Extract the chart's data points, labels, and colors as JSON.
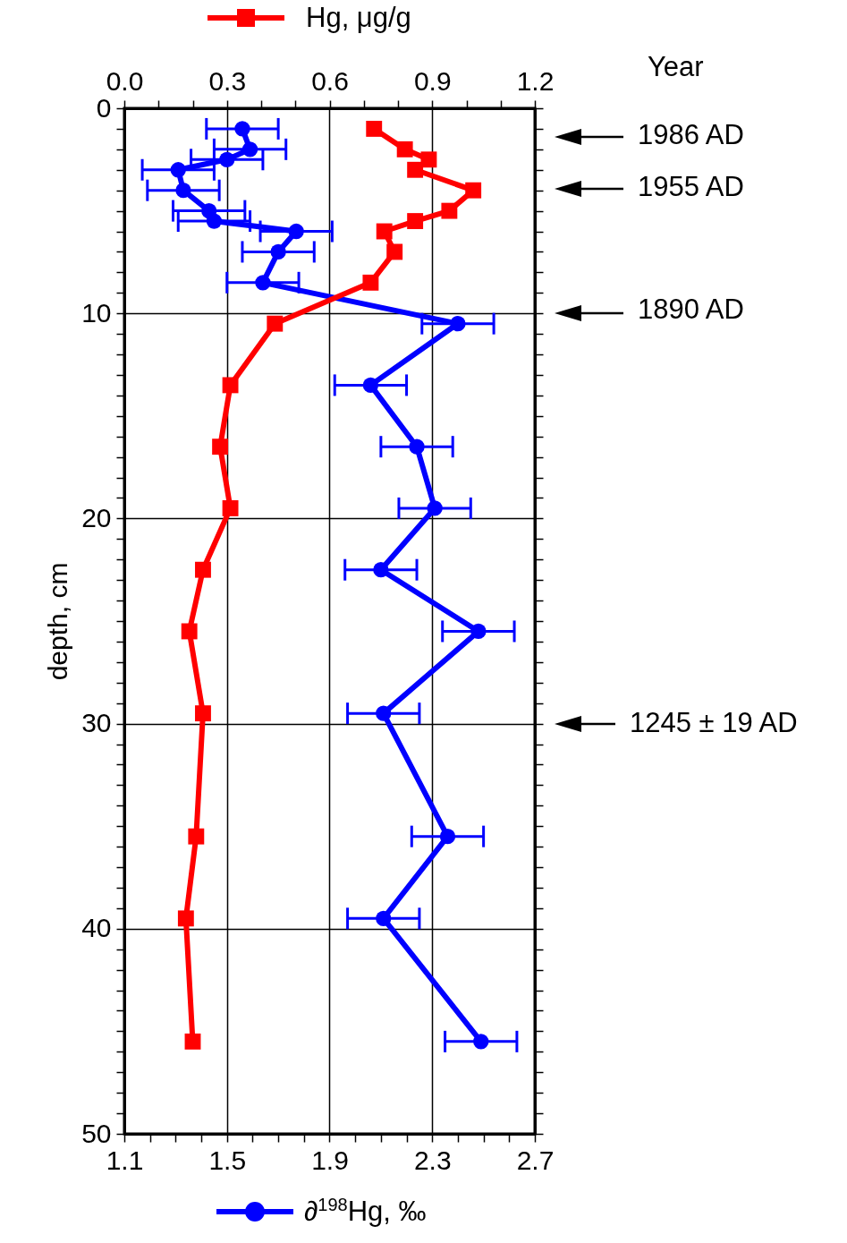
{
  "chart_data": {
    "type": "line",
    "orientation": "horizontal",
    "ylabel": "depth, cm",
    "grid": true,
    "legend": "top",
    "xlim": [
      1.1,
      2.7
    ],
    "xticks": [
      1.1,
      {
        "value": 1.2,
        "label": null
      },
      {
        "value": 1.3,
        "label": null
      },
      {
        "value": 1.4,
        "label": null
      },
      1.5,
      {
        "value": 1.6,
        "label": null
      },
      {
        "value": 1.7,
        "label": null
      },
      {
        "value": 1.8,
        "label": null
      },
      1.9,
      {
        "value": 2.0,
        "label": null
      },
      {
        "value": 2.1,
        "label": null
      },
      {
        "value": 2.2,
        "label": null
      },
      2.3,
      {
        "value": 2.4,
        "label": null
      },
      {
        "value": 2.5,
        "label": null
      },
      {
        "value": 2.6,
        "label": null
      },
      2.7
    ],
    "x2lim": [
      0,
      1.2
    ],
    "x2ticks": [
      {
        "value": 0,
        "label": "0.0"
      },
      {
        "value": 0.1,
        "label": null
      },
      {
        "value": 0.2,
        "label": null
      },
      0.3,
      {
        "value": 0.4,
        "label": null
      },
      {
        "value": 0.5,
        "label": null
      },
      0.6,
      {
        "value": 0.7,
        "label": null
      },
      {
        "value": 0.8,
        "label": null
      },
      0.9,
      {
        "value": 1.0,
        "label": null
      },
      {
        "value": 1.1,
        "label": null
      },
      1.2
    ],
    "ylim": [
      50,
      0
    ],
    "yticks": [
      0,
      {
        "value": 1,
        "label": null
      },
      {
        "value": 2,
        "label": null
      },
      {
        "value": 3,
        "label": null
      },
      {
        "value": 4,
        "label": null
      },
      {
        "value": 5,
        "label": null
      },
      {
        "value": 6,
        "label": null
      },
      {
        "value": 7,
        "label": null
      },
      {
        "value": 8,
        "label": null
      },
      {
        "value": 9,
        "label": null
      },
      10,
      {
        "value": 11,
        "label": null
      },
      {
        "value": 12,
        "label": null
      },
      {
        "value": 13,
        "label": null
      },
      {
        "value": 14,
        "label": null
      },
      {
        "value": 15,
        "label": null
      },
      {
        "value": 16,
        "label": null
      },
      {
        "value": 17,
        "label": null
      },
      {
        "value": 18,
        "label": null
      },
      {
        "value": 19,
        "label": null
      },
      20,
      {
        "value": 21,
        "label": null
      },
      {
        "value": 22,
        "label": null
      },
      {
        "value": 23,
        "label": null
      },
      {
        "value": 24,
        "label": null
      },
      {
        "value": 25,
        "label": null
      },
      {
        "value": 26,
        "label": null
      },
      {
        "value": 27,
        "label": null
      },
      {
        "value": 28,
        "label": null
      },
      {
        "value": 29,
        "label": null
      },
      30,
      {
        "value": 31,
        "label": null
      },
      {
        "value": 32,
        "label": null
      },
      {
        "value": 33,
        "label": null
      },
      {
        "value": 34,
        "label": null
      },
      {
        "value": 35,
        "label": null
      },
      {
        "value": 36,
        "label": null
      },
      {
        "value": 37,
        "label": null
      },
      {
        "value": 38,
        "label": null
      },
      {
        "value": 39,
        "label": null
      },
      40,
      {
        "value": 41,
        "label": null
      },
      {
        "value": 42,
        "label": null
      },
      {
        "value": 43,
        "label": null
      },
      {
        "value": 44,
        "label": null
      },
      {
        "value": 45,
        "label": null
      },
      {
        "value": 46,
        "label": null
      },
      {
        "value": 47,
        "label": null
      },
      {
        "value": 48,
        "label": null
      },
      {
        "value": 49,
        "label": null
      },
      50
    ],
    "series": [
      {
        "name": "∂$^{198}$Hg, ‰",
        "color": "#0000ff",
        "marker": "circle",
        "x": [
          1.0,
          2.0,
          2.5,
          3.0,
          4.0,
          5.0,
          5.5,
          6.0,
          7.0,
          8.5,
          10.5,
          13.5,
          16.5,
          19.5,
          22.5,
          25.5,
          29.5,
          35.5,
          39.5,
          45.5
        ],
        "values": [
          1.56,
          1.59,
          1.5,
          1.31,
          1.33,
          1.43,
          1.45,
          1.77,
          1.7,
          1.64,
          2.4,
          2.06,
          2.24,
          2.31,
          2.1,
          2.48,
          2.11,
          2.36,
          2.11,
          2.49
        ],
        "errors": [
          0.14,
          0.14,
          0.14,
          0.14,
          0.14,
          0.14,
          0.14,
          0.14,
          0.14,
          0.14,
          0.14,
          0.14,
          0.14,
          0.14,
          0.14,
          0.14,
          0.14,
          0.14,
          0.14,
          0.14
        ]
      },
      {
        "name": "Hg, μg/g",
        "color": "#ff0000",
        "marker": "square",
        "axis": "x2",
        "x": [
          1.0,
          2.0,
          2.5,
          3.0,
          4.0,
          5.0,
          5.5,
          6.0,
          7.0,
          8.5,
          10.5,
          13.5,
          16.5,
          19.5,
          22.5,
          25.5,
          29.5,
          35.5,
          39.5,
          45.5
        ],
        "values": [
          0.73,
          0.82,
          0.89,
          0.85,
          1.02,
          0.95,
          0.85,
          0.76,
          0.79,
          0.72,
          0.44,
          0.31,
          0.28,
          0.31,
          0.23,
          0.19,
          0.23,
          0.21,
          0.18,
          0.2
        ]
      }
    ],
    "annotations": [
      "Year",
      "1986 AD",
      "1955 AD",
      "1890 AD",
      "1245 ± 19 AD"
    ]
  }
}
